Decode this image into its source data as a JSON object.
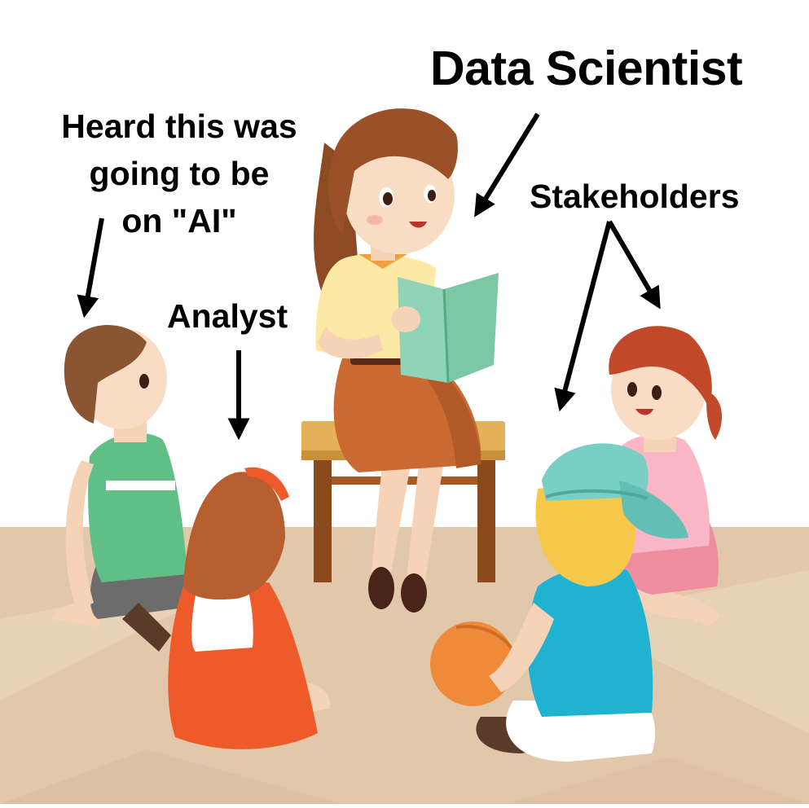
{
  "labels": {
    "data_scientist": "Data Scientist",
    "heard_line1": "Heard this was",
    "heard_line2": "going to be",
    "heard_line3": "on \"AI\"",
    "analyst": "Analyst",
    "stakeholders": "Stakeholders"
  },
  "colors": {
    "floor": "#e2c8aa",
    "floor_light": "#ebd7bf",
    "arrow": "#000000"
  }
}
